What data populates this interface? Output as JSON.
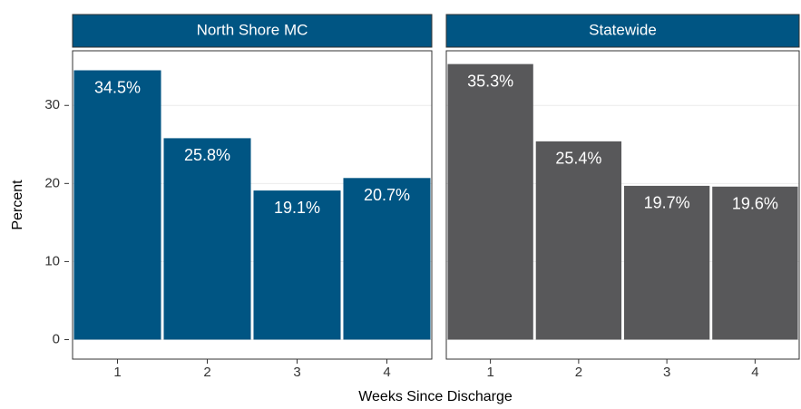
{
  "chart_data": {
    "type": "bar",
    "xlabel": "Weeks Since Discharge",
    "ylabel": "Percent",
    "categories": [
      "1",
      "2",
      "3",
      "4"
    ],
    "series": [
      {
        "name": "North Shore MC",
        "color": "#005583",
        "values": [
          34.5,
          25.8,
          19.1,
          20.7
        ],
        "value_labels": [
          "34.5%",
          "25.8%",
          "19.1%",
          "20.7%"
        ]
      },
      {
        "name": "Statewide",
        "color": "#58585a",
        "values": [
          35.3,
          25.4,
          19.7,
          19.6
        ],
        "value_labels": [
          "35.3%",
          "25.4%",
          "19.7%",
          "19.6%"
        ]
      }
    ],
    "strip_color": "#005583",
    "ylim": [
      -2.5,
      37
    ],
    "yticks": [
      0,
      10,
      20,
      30
    ],
    "grid": true
  }
}
